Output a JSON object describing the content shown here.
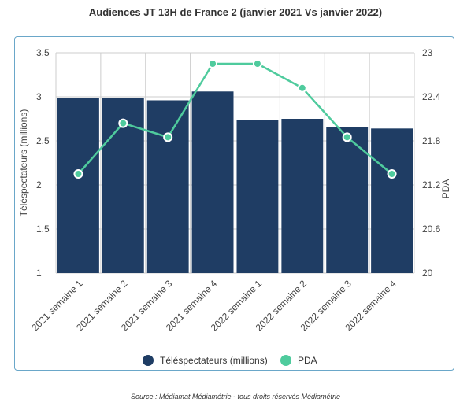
{
  "title": "Audiences JT 13H de France 2 (janvier 2021 Vs janvier 2022)",
  "source": "Source : Médiamat Médiamétrie - tous droits réservés Médiamétrie",
  "colors": {
    "bar": "#1f3d64",
    "line": "#4fcb9d",
    "grid": "#cccccc",
    "border": "#6aa7c9"
  },
  "chart_data": {
    "type": "bar",
    "categories": [
      "2021 semaine 1",
      "2021 semaine 2",
      "2021 semaine 3",
      "2021 semaine 4",
      "2022 semaine 1",
      "2022 semaine 2",
      "2022 semaine 3",
      "2022 semaine 4"
    ],
    "series": [
      {
        "name": "Téléspectateurs (millions)",
        "type": "bar",
        "axis": "left",
        "values": [
          2.99,
          2.99,
          2.96,
          3.06,
          2.74,
          2.75,
          2.66,
          2.64
        ]
      },
      {
        "name": "PDA",
        "type": "line",
        "axis": "right",
        "values": [
          21.35,
          22.04,
          21.85,
          22.85,
          22.85,
          22.52,
          21.85,
          21.35
        ]
      }
    ],
    "ylabel": "Téléspectateurs (millions)",
    "y2label": "PDA",
    "ylim": [
      1,
      3.5
    ],
    "y2lim": [
      20,
      23
    ],
    "yticks": [
      "1",
      "1.5",
      "2",
      "2.5",
      "3",
      "3.5"
    ],
    "y2ticks": [
      "20",
      "20.6",
      "21.2",
      "21.8",
      "22.4",
      "23"
    ],
    "grid": true,
    "legend": "bottom-center"
  }
}
